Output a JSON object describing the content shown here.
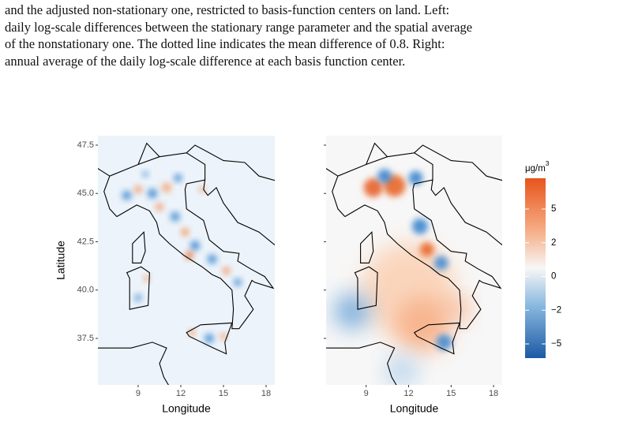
{
  "caption": {
    "lines": [
      "and the adjusted non-stationary one, restricted to basis-function centers on land.  Left:",
      "daily log-scale differences between the stationary range parameter and the spatial average",
      "of the nonstationary one.  The dotted line indicates the mean difference of 0.8.  Right:",
      "annual average of the daily log-scale difference at each basis function center."
    ]
  },
  "figure": {
    "y_label": "Latitude",
    "x_label": "Longitude",
    "xlim": [
      6.17,
      18.61
    ],
    "ylim": [
      35.09,
      47.99
    ],
    "xticks": [
      9,
      12,
      15,
      18
    ],
    "yticks": [
      47.5,
      {
        "value": 45,
        "label": "45.0"
      },
      42.5,
      {
        "value": 40,
        "label": "40.0"
      },
      37.5
    ],
    "panels": [
      {
        "x_label": "Longitude"
      },
      {
        "x_label": "Longitude"
      }
    ],
    "legend": {
      "title": "μg/m",
      "title_sup": "3",
      "ticks": [
        5,
        2,
        0,
        {
          "value": -2,
          "label": "−2"
        },
        {
          "value": -5,
          "label": "−5"
        }
      ]
    }
  }
}
